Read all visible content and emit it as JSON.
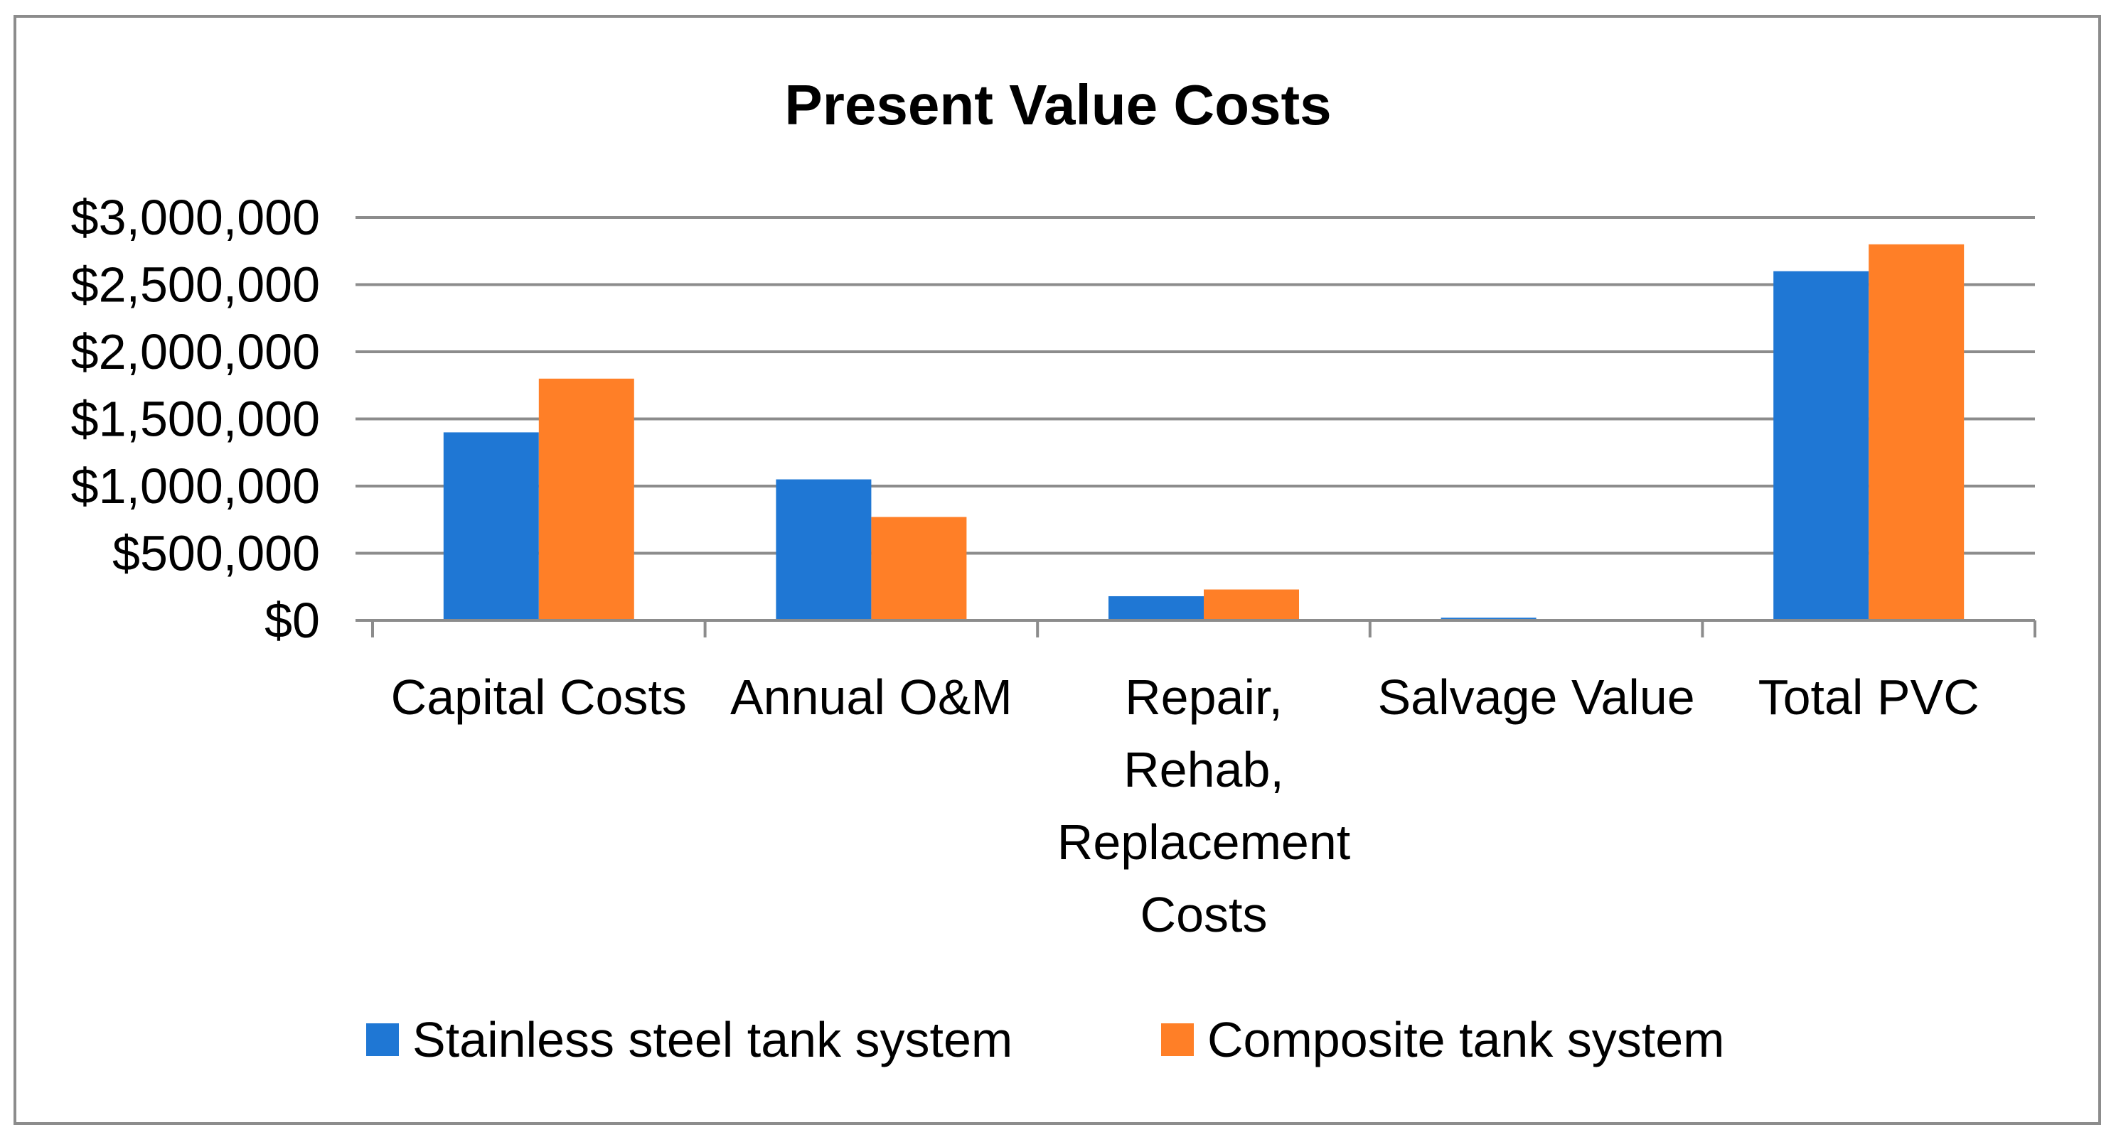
{
  "chart_data": {
    "type": "bar",
    "title": "Present Value Costs",
    "xlabel": "",
    "ylabel": "",
    "ylim": [
      0,
      3000000
    ],
    "yticks": [
      0,
      500000,
      1000000,
      1500000,
      2000000,
      2500000,
      3000000
    ],
    "ytick_labels": [
      "$0",
      "$500,000",
      "$1,000,000",
      "$1,500,000",
      "$2,000,000",
      "$2,500,000",
      "$3,000,000"
    ],
    "grid": true,
    "legend_position": "bottom",
    "categories": [
      [
        "Capital Costs"
      ],
      [
        "Annual O&M"
      ],
      [
        "Repair,",
        "Rehab,",
        "Replacement",
        "Costs"
      ],
      [
        "Salvage Value"
      ],
      [
        "Total PVC"
      ]
    ],
    "series": [
      {
        "name": "Stainless steel tank system",
        "color": "#1f77d4",
        "values": [
          1400000,
          1050000,
          180000,
          20000,
          2600000
        ]
      },
      {
        "name": "Composite tank system",
        "color": "#ff7f27",
        "values": [
          1800000,
          770000,
          230000,
          0,
          2800000
        ]
      }
    ]
  }
}
